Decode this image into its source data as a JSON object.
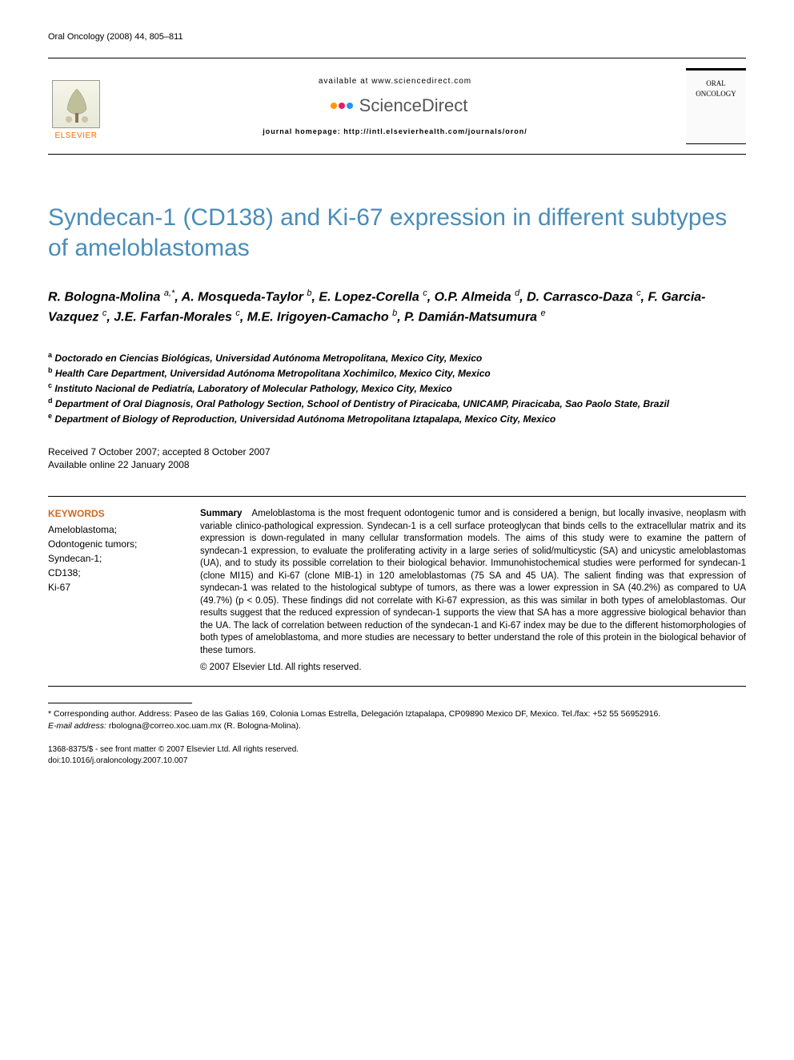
{
  "journal_ref": "Oral Oncology (2008) 44, 805–811",
  "header": {
    "available_text": "available at www.sciencedirect.com",
    "sciencedirect_label": "ScienceDirect",
    "homepage_text": "journal homepage: http://intl.elsevierhealth.com/journals/oron/",
    "elsevier_label": "ELSEVIER",
    "journal_cover_line1": "ORAL",
    "journal_cover_line2": "ONCOLOGY",
    "sd_dot_colors": [
      "#8bc34a",
      "#ff9800",
      "#e91e63",
      "#2196f3"
    ]
  },
  "title": "Syndecan-1 (CD138) and Ki-67 expression in different subtypes of ameloblastomas",
  "authors_html": "R. Bologna-Molina <sup>a,*</sup>, A. Mosqueda-Taylor <sup>b</sup>, E. Lopez-Corella <sup>c</sup>, O.P. Almeida <sup>d</sup>, D. Carrasco-Daza <sup>c</sup>, F. Garcia-Vazquez <sup>c</sup>, J.E. Farfan-Morales <sup>c</sup>, M.E. Irigoyen-Camacho <sup>b</sup>, P. Damián-Matsumura <sup>e</sup>",
  "affiliations": [
    {
      "sup": "a",
      "text": "Doctorado en Ciencias Biológicas, Universidad Autónoma Metropolitana, Mexico City, Mexico"
    },
    {
      "sup": "b",
      "text": "Health Care Department, Universidad Autónoma Metropolitana Xochimilco, Mexico City, Mexico"
    },
    {
      "sup": "c",
      "text": "Instituto Nacional de Pediatría, Laboratory of Molecular Pathology, Mexico City, Mexico"
    },
    {
      "sup": "d",
      "text": "Department of Oral Diagnosis, Oral Pathology Section, School of Dentistry of Piracicaba, UNICAMP, Piracicaba, Sao Paolo State, Brazil"
    },
    {
      "sup": "e",
      "text": "Department of Biology of Reproduction, Universidad Autónoma Metropolitana Iztapalapa, Mexico City, Mexico"
    }
  ],
  "dates": {
    "received_accepted": "Received 7 October 2007; accepted 8 October 2007",
    "available_online": "Available online 22 January 2008"
  },
  "keywords": {
    "heading": "KEYWORDS",
    "items": [
      "Ameloblastoma;",
      "Odontogenic tumors;",
      "Syndecan-1;",
      "CD138;",
      "Ki-67"
    ]
  },
  "summary": {
    "label": "Summary",
    "body": "Ameloblastoma is the most frequent odontogenic tumor and is considered a benign, but locally invasive, neoplasm with variable clinico-pathological expression. Syndecan-1 is a cell surface proteoglycan that binds cells to the extracellular matrix and its expression is down-regulated in many cellular transformation models. The aims of this study were to examine the pattern of syndecan-1 expression, to evaluate the proliferating activity in a large series of solid/multicystic (SA) and unicystic ameloblastomas (UA), and to study its possible correlation to their biological behavior. Immunohistochemical studies were performed for syndecan-1 (clone MI15) and Ki-67 (clone MIB-1) in 120 ameloblastomas (75 SA and 45 UA). The salient finding was that expression of syndecan-1 was related to the histological subtype of tumors, as there was a lower expression in SA (40.2%) as compared to UA (49.7%) (p < 0.05). These findings did not correlate with Ki-67 expression, as this was similar in both types of ameloblastomas. Our results suggest that the reduced expression of syndecan-1 supports the view that SA has a more aggressive biological behavior than the UA. The lack of correlation between reduction of the syndecan-1 and Ki-67 index may be due to the different histomorphologies of both types of ameloblastoma, and more studies are necessary to better understand the role of this protein in the biological behavior of these tumors.",
    "copyright": "© 2007 Elsevier Ltd. All rights reserved."
  },
  "footnotes": {
    "corresponding": "* Corresponding author. Address: Paseo de las Galias 169, Colonia Lomas Estrella, Delegación Iztapalapa, CP09890 Mexico DF, Mexico. Tel./fax: +52 55 56952916.",
    "email_label": "E-mail address:",
    "email": "rbologna@correo.xoc.uam.mx",
    "email_name": "(R. Bologna-Molina)."
  },
  "footer": {
    "line1": "1368-8375/$ - see front matter © 2007 Elsevier Ltd. All rights reserved.",
    "line2": "doi:10.1016/j.oraloncology.2007.10.007"
  },
  "colors": {
    "title_color": "#4a8db8",
    "keywords_heading_color": "#d2691e",
    "elsevier_color": "#ff6b00"
  }
}
